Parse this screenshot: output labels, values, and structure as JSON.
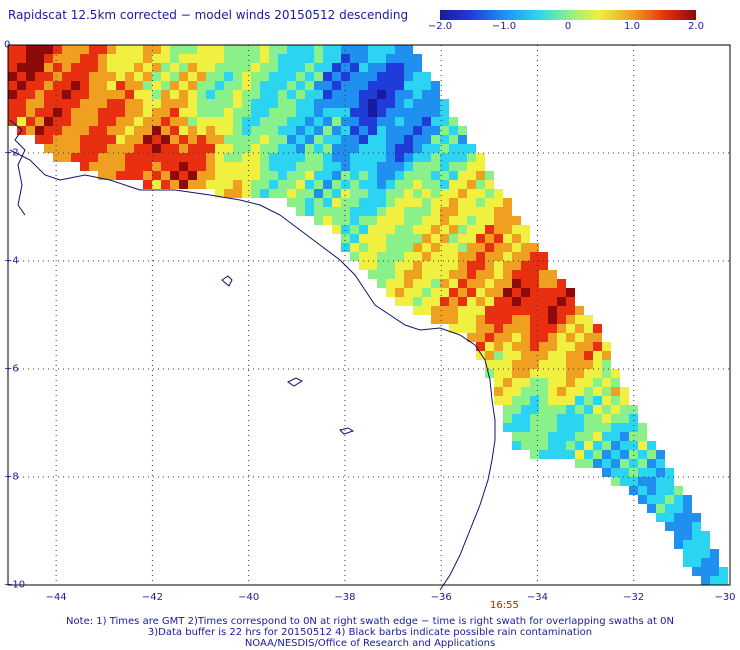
{
  "title": "Rapidscat 12.5km corrected − model winds 20150512 descending",
  "colorbar": {
    "min": -2.0,
    "max": 2.0,
    "labels": [
      "−2.0",
      "−1.0",
      "0",
      "1.0",
      "2.0"
    ],
    "colors": [
      "#1a1aa0",
      "#1f3cd8",
      "#1f8ff0",
      "#2bd4f0",
      "#8af08a",
      "#f0f040",
      "#f0a020",
      "#e83010",
      "#8c0a0a"
    ]
  },
  "axes": {
    "x_ticks": [
      "−44",
      "−42",
      "−40",
      "−38",
      "−36",
      "−34",
      "−32",
      "−30"
    ],
    "y_ticks": [
      "0",
      "−2",
      "−4",
      "−6",
      "−8",
      "−10"
    ]
  },
  "chart_data": {
    "type": "heatmap",
    "xlim": [
      -45,
      -30
    ],
    "ylim": [
      -10,
      0
    ],
    "regions": [
      {
        "lon": -44.5,
        "lat": -0.5,
        "value": 1.8
      },
      {
        "lon": -43.5,
        "lat": -1.0,
        "value": 1.4
      },
      {
        "lon": -42.5,
        "lat": -1.5,
        "value": 1.2
      },
      {
        "lon": -41.5,
        "lat": -2.0,
        "value": 1.9
      },
      {
        "lon": -42.0,
        "lat": -0.5,
        "value": 0.4
      },
      {
        "lon": -40.5,
        "lat": -1.0,
        "value": -0.2
      },
      {
        "lon": -39.0,
        "lat": -1.5,
        "value": -0.6
      },
      {
        "lon": -37.5,
        "lat": -1.0,
        "value": -1.7
      },
      {
        "lon": -36.8,
        "lat": -1.8,
        "value": -1.2
      },
      {
        "lon": -36.0,
        "lat": -3.0,
        "value": 0.6
      },
      {
        "lon": -35.0,
        "lat": -4.0,
        "value": 1.1
      },
      {
        "lon": -34.0,
        "lat": -4.8,
        "value": 1.9
      },
      {
        "lon": -33.5,
        "lat": -5.8,
        "value": 0.9
      },
      {
        "lon": -33.8,
        "lat": -7.0,
        "value": -0.4
      },
      {
        "lon": -32.5,
        "lat": -8.0,
        "value": -0.6
      },
      {
        "lon": -31.5,
        "lat": -9.2,
        "value": -1.0
      }
    ]
  },
  "time_label": "16:55",
  "notes": [
    "Note: 1) Times are GMT 2)Times correspond to 0N at right swath edge − time is right swath for overlapping swaths at 0N",
    "3)Data buffer is 22 hrs for 20150512 4) Black barbs indicate possible rain contamination",
    "NOAA/NESDIS/Office of Research and Applications"
  ]
}
